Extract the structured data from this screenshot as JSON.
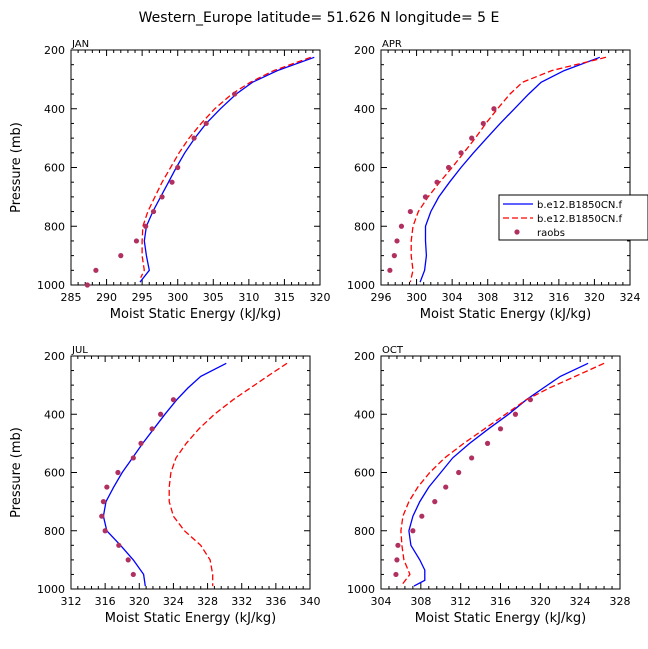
{
  "figure": {
    "title": "Western_Europe  latitude= 51.626 N longitude= 5 E"
  },
  "legend": {
    "entries": [
      {
        "label": "b.e12.B1850CN.f",
        "style": "solid",
        "color": "#0000ff"
      },
      {
        "label": "b.e12.B1850CN.f",
        "style": "dashed",
        "color": "#ff0000"
      },
      {
        "label": "raobs",
        "style": "dots",
        "color": "#b03060"
      }
    ]
  },
  "chart_data": [
    {
      "type": "line",
      "panel": "JAN",
      "title": "JAN",
      "xlabel": "Moist Static Energy (kJ/kg)",
      "ylabel": "Pressure (mb)",
      "xlim": [
        285,
        320
      ],
      "ylim": [
        1000,
        200
      ],
      "xticks": [
        "285",
        "290",
        "295",
        "300",
        "305",
        "310",
        "315",
        "320"
      ],
      "yticks": [
        "200",
        "400",
        "600",
        "800",
        "1000"
      ],
      "series": [
        {
          "name": "b.e12.B1850CN.f",
          "style": "solid",
          "color": "#0000ff",
          "pressure": [
            225,
            270,
            310,
            350,
            400,
            450,
            500,
            550,
            600,
            650,
            700,
            750,
            800,
            850,
            900,
            950,
            990
          ],
          "mse": [
            319.2,
            314.0,
            310.5,
            308.2,
            306.0,
            304.0,
            302.4,
            301.0,
            299.8,
            298.7,
            297.6,
            296.5,
            295.6,
            295.3,
            295.6,
            296.0,
            294.7
          ]
        },
        {
          "name": "b.e12.B1850CN.f",
          "style": "dashed",
          "color": "#ff0000",
          "pressure": [
            225,
            270,
            310,
            350,
            400,
            450,
            500,
            550,
            600,
            650,
            700,
            750,
            800,
            850,
            900,
            950,
            975
          ],
          "mse": [
            318.7,
            313.5,
            310.2,
            307.6,
            305.2,
            303.3,
            301.6,
            300.2,
            299.0,
            297.8,
            296.8,
            295.8,
            295.1,
            295.0,
            295.0,
            295.3,
            294.8
          ]
        },
        {
          "name": "raobs",
          "style": "dots",
          "color": "#b03060",
          "pressure": [
            350,
            450,
            500,
            600,
            650,
            700,
            750,
            800,
            850,
            900,
            950,
            1000
          ],
          "mse": [
            308.0,
            304.0,
            302.3,
            300.0,
            299.2,
            297.8,
            296.6,
            295.5,
            294.2,
            292.0,
            288.5,
            287.3
          ]
        }
      ]
    },
    {
      "type": "line",
      "panel": "APR",
      "title": "APR",
      "xlabel": "Moist Static Energy (kJ/kg)",
      "ylabel": "Pressure (mb)",
      "xlim": [
        296,
        324
      ],
      "ylim": [
        1000,
        200
      ],
      "xticks": [
        "296",
        "300",
        "304",
        "308",
        "312",
        "316",
        "320",
        "324"
      ],
      "yticks": [
        "200",
        "400",
        "600",
        "800",
        "1000"
      ],
      "series": [
        {
          "name": "b.e12.B1850CN.f",
          "style": "solid",
          "color": "#0000ff",
          "pressure": [
            225,
            270,
            310,
            350,
            400,
            450,
            500,
            550,
            600,
            650,
            700,
            750,
            800,
            850,
            900,
            950,
            990
          ],
          "mse": [
            320.6,
            316.6,
            314.0,
            312.6,
            311.0,
            309.4,
            307.9,
            306.4,
            305.0,
            303.7,
            302.5,
            301.6,
            301.0,
            301.0,
            301.1,
            300.9,
            300.4
          ]
        },
        {
          "name": "b.e12.B1850CN.f",
          "style": "dashed",
          "color": "#ff0000",
          "pressure": [
            225,
            270,
            310,
            350,
            400,
            450,
            500,
            550,
            600,
            650,
            700,
            750,
            800,
            850,
            900,
            950,
            990
          ],
          "mse": [
            321.3,
            315.2,
            311.9,
            310.5,
            309.1,
            307.8,
            306.6,
            305.3,
            304.0,
            302.6,
            301.3,
            300.2,
            299.6,
            299.4,
            299.4,
            299.6,
            299.3
          ]
        },
        {
          "name": "raobs",
          "style": "dots",
          "color": "#b03060",
          "pressure": [
            400,
            450,
            500,
            550,
            600,
            650,
            700,
            750,
            800,
            850,
            900,
            950
          ],
          "mse": [
            308.7,
            307.5,
            306.2,
            305.0,
            303.6,
            302.3,
            301.0,
            299.3,
            298.3,
            297.8,
            297.5,
            297.0
          ]
        }
      ]
    },
    {
      "type": "line",
      "panel": "JUL",
      "title": "JUL",
      "xlabel": "Moist Static Energy (kJ/kg)",
      "ylabel": "Pressure (mb)",
      "xlim": [
        312,
        340
      ],
      "ylim": [
        1000,
        200
      ],
      "xticks": [
        "312",
        "316",
        "320",
        "324",
        "328",
        "332",
        "336",
        "340"
      ],
      "yticks": [
        "200",
        "400",
        "600",
        "800",
        "1000"
      ],
      "series": [
        {
          "name": "b.e12.B1850CN.f",
          "style": "solid",
          "color": "#0000ff",
          "pressure": [
            225,
            270,
            310,
            350,
            400,
            450,
            500,
            550,
            600,
            650,
            700,
            750,
            800,
            850,
            900,
            950,
            990
          ],
          "mse": [
            330.2,
            327.2,
            325.7,
            324.4,
            323.0,
            321.7,
            320.4,
            319.2,
            318.0,
            317.0,
            316.1,
            315.8,
            316.2,
            317.8,
            319.3,
            320.5,
            320.7
          ]
        },
        {
          "name": "b.e12.B1850CN.f",
          "style": "dashed",
          "color": "#ff0000",
          "pressure": [
            225,
            270,
            310,
            350,
            400,
            450,
            500,
            550,
            600,
            650,
            700,
            750,
            800,
            850,
            900,
            950,
            990
          ],
          "mse": [
            337.3,
            335.0,
            333.0,
            331.0,
            328.8,
            327.0,
            325.5,
            324.3,
            323.7,
            323.5,
            323.5,
            324.0,
            325.3,
            327.2,
            328.3,
            328.6,
            328.6
          ]
        },
        {
          "name": "raobs",
          "style": "dots",
          "color": "#b03060",
          "pressure": [
            350,
            400,
            450,
            500,
            550,
            600,
            650,
            700,
            750,
            800,
            850,
            900,
            950
          ],
          "mse": [
            324.0,
            322.5,
            321.5,
            320.2,
            319.3,
            317.5,
            316.2,
            315.8,
            315.6,
            316.0,
            317.6,
            318.7,
            319.3
          ]
        }
      ]
    },
    {
      "type": "line",
      "panel": "OCT",
      "title": "OCT",
      "xlabel": "Moist Static Energy (kJ/kg)",
      "ylabel": "Pressure (mb)",
      "xlim": [
        304,
        328
      ],
      "ylim": [
        1000,
        200
      ],
      "xticks": [
        "304",
        "308",
        "312",
        "316",
        "320",
        "324",
        "328"
      ],
      "yticks": [
        "200",
        "400",
        "600",
        "800",
        "1000"
      ],
      "series": [
        {
          "name": "b.e12.B1850CN.f",
          "style": "solid",
          "color": "#0000ff",
          "pressure": [
            225,
            270,
            310,
            350,
            400,
            450,
            500,
            550,
            600,
            650,
            700,
            750,
            800,
            850,
            900,
            935,
            970,
            990
          ],
          "mse": [
            324.8,
            322.0,
            320.3,
            318.6,
            316.8,
            314.8,
            312.9,
            311.2,
            310.0,
            308.8,
            307.9,
            307.2,
            306.8,
            307.0,
            307.9,
            308.4,
            308.4,
            307.3
          ]
        },
        {
          "name": "b.e12.B1850CN.f",
          "style": "dashed",
          "color": "#ff0000",
          "pressure": [
            225,
            270,
            310,
            350,
            400,
            450,
            500,
            550,
            600,
            650,
            700,
            750,
            800,
            850,
            900,
            950,
            990
          ],
          "mse": [
            326.4,
            323.5,
            320.9,
            318.6,
            316.5,
            314.4,
            312.3,
            310.4,
            308.9,
            307.7,
            306.8,
            306.2,
            306.0,
            306.1,
            306.3,
            306.9,
            306.0
          ]
        },
        {
          "name": "raobs",
          "style": "dots",
          "color": "#b03060",
          "pressure": [
            350,
            400,
            450,
            500,
            550,
            600,
            650,
            700,
            750,
            800,
            850,
            900,
            950
          ],
          "mse": [
            319.0,
            317.5,
            316.0,
            314.7,
            313.1,
            311.8,
            310.5,
            309.4,
            308.1,
            307.2,
            305.7,
            305.6,
            305.5
          ]
        }
      ]
    }
  ]
}
